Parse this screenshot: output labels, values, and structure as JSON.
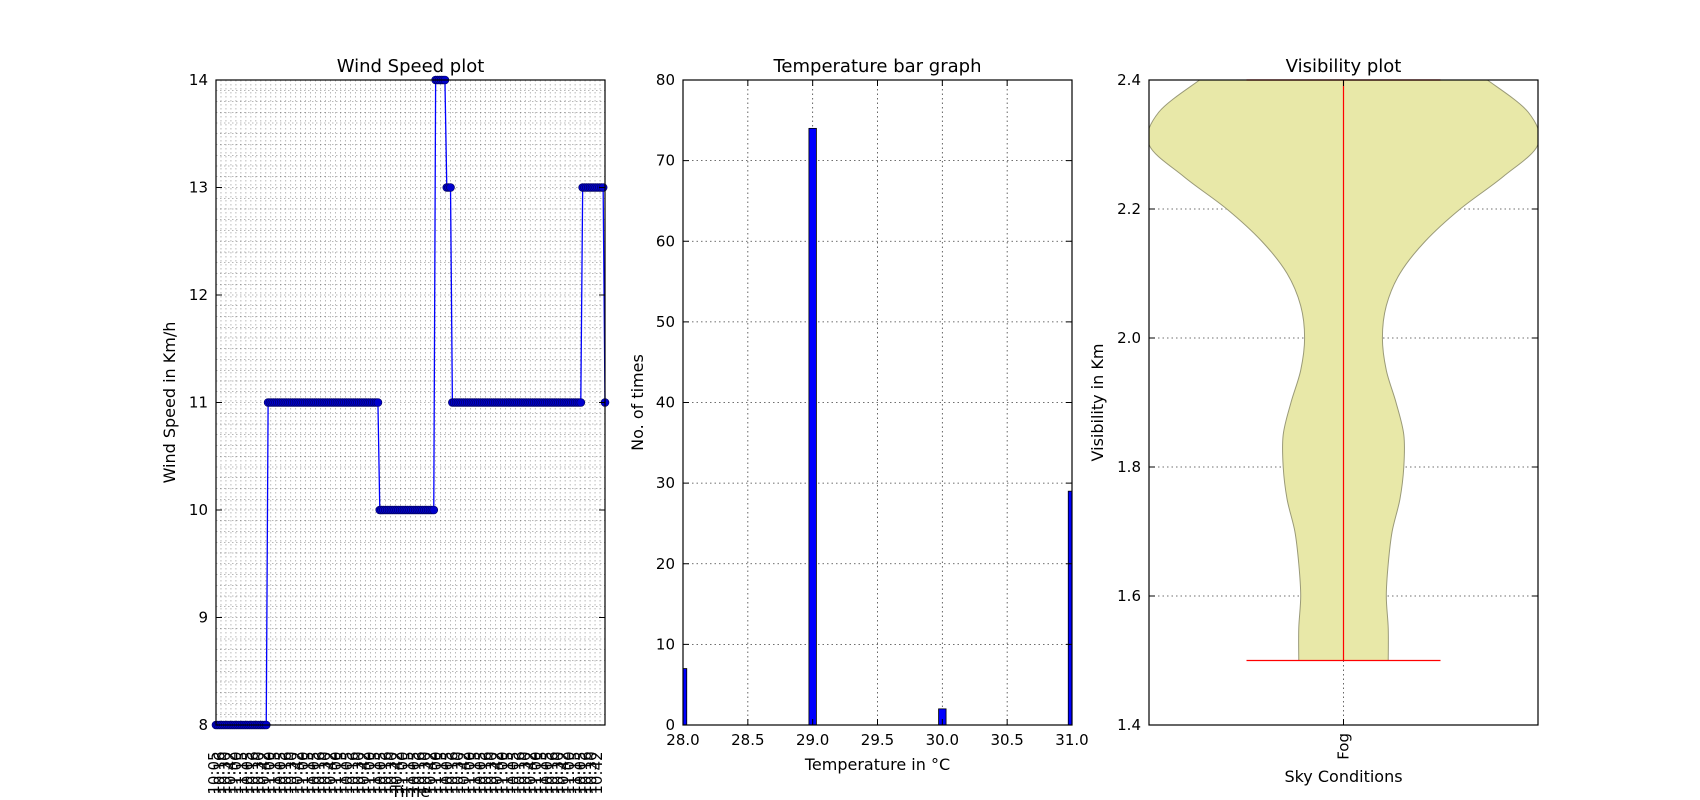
{
  "figure": {
    "panels": [
      {
        "id": "wind",
        "title": "Wind Speed plot",
        "xlabel": "Time",
        "ylabel": "Wind Speed in Km/h"
      },
      {
        "id": "temp",
        "title": "Temperature bar graph",
        "xlabel": "Temperature in °C",
        "ylabel": "No. of times"
      },
      {
        "id": "vis",
        "title": "Visibility plot",
        "xlabel": "Sky Conditions",
        "ylabel": "Visibility in Km"
      }
    ]
  },
  "chart_data": [
    {
      "type": "line",
      "title": "Wind Speed plot",
      "xlabel": "Time",
      "ylabel": "Wind Speed in Km/h",
      "ylim": [
        8,
        14
      ],
      "yticks": [
        8,
        9,
        10,
        11,
        12,
        13,
        14
      ],
      "grid": true,
      "marker": "circle",
      "color": "#0000ff",
      "x_tick_labels": "dense, overlapping and illegible time stamps",
      "segments": [
        {
          "value": 8,
          "points": 28
        },
        {
          "value": 11,
          "points": 60
        },
        {
          "value": 10,
          "points": 30
        },
        {
          "value": 14,
          "points": 6
        },
        {
          "value": 13,
          "points": 3
        },
        {
          "value": 11,
          "points": 70
        },
        {
          "value": 13,
          "points": 12
        },
        {
          "value": 11,
          "points": 1
        }
      ]
    },
    {
      "type": "bar",
      "title": "Temperature bar graph",
      "xlabel": "Temperature in °C",
      "ylabel": "No. of times",
      "xlim": [
        28.0,
        31.0
      ],
      "ylim": [
        0,
        80
      ],
      "xticks": [
        "28.0",
        "28.5",
        "29.0",
        "29.5",
        "30.0",
        "30.5",
        "31.0"
      ],
      "yticks": [
        0,
        10,
        20,
        30,
        40,
        50,
        60,
        70,
        80
      ],
      "grid": true,
      "color": "#0000ff",
      "bars": [
        {
          "x": 28.0,
          "value": 7
        },
        {
          "x": 29.0,
          "value": 74
        },
        {
          "x": 30.0,
          "value": 2
        },
        {
          "x": 31.0,
          "value": 29
        }
      ]
    },
    {
      "type": "violin",
      "title": "Visibility plot",
      "xlabel": "Sky Conditions",
      "ylabel": "Visibility in Km",
      "categories": [
        "Fog"
      ],
      "ylim": [
        1.4,
        2.4
      ],
      "yticks": [
        "1.4",
        "1.6",
        "1.8",
        "2.0",
        "2.2",
        "2.4"
      ],
      "grid": true,
      "fill_color": "#e8e8a8",
      "line_color": "#ff0000",
      "min": 1.5,
      "max": 2.4,
      "density_profile": [
        {
          "y": 1.5,
          "w": 0.23
        },
        {
          "y": 1.55,
          "w": 0.23
        },
        {
          "y": 1.6,
          "w": 0.22
        },
        {
          "y": 1.65,
          "w": 0.23
        },
        {
          "y": 1.7,
          "w": 0.25
        },
        {
          "y": 1.75,
          "w": 0.29
        },
        {
          "y": 1.8,
          "w": 0.31
        },
        {
          "y": 1.85,
          "w": 0.31
        },
        {
          "y": 1.9,
          "w": 0.27
        },
        {
          "y": 1.95,
          "w": 0.22
        },
        {
          "y": 2.0,
          "w": 0.2
        },
        {
          "y": 2.05,
          "w": 0.22
        },
        {
          "y": 2.1,
          "w": 0.29
        },
        {
          "y": 2.15,
          "w": 0.42
        },
        {
          "y": 2.2,
          "w": 0.6
        },
        {
          "y": 2.25,
          "w": 0.82
        },
        {
          "y": 2.3,
          "w": 1.0
        },
        {
          "y": 2.35,
          "w": 0.95
        },
        {
          "y": 2.4,
          "w": 0.74
        }
      ]
    }
  ]
}
